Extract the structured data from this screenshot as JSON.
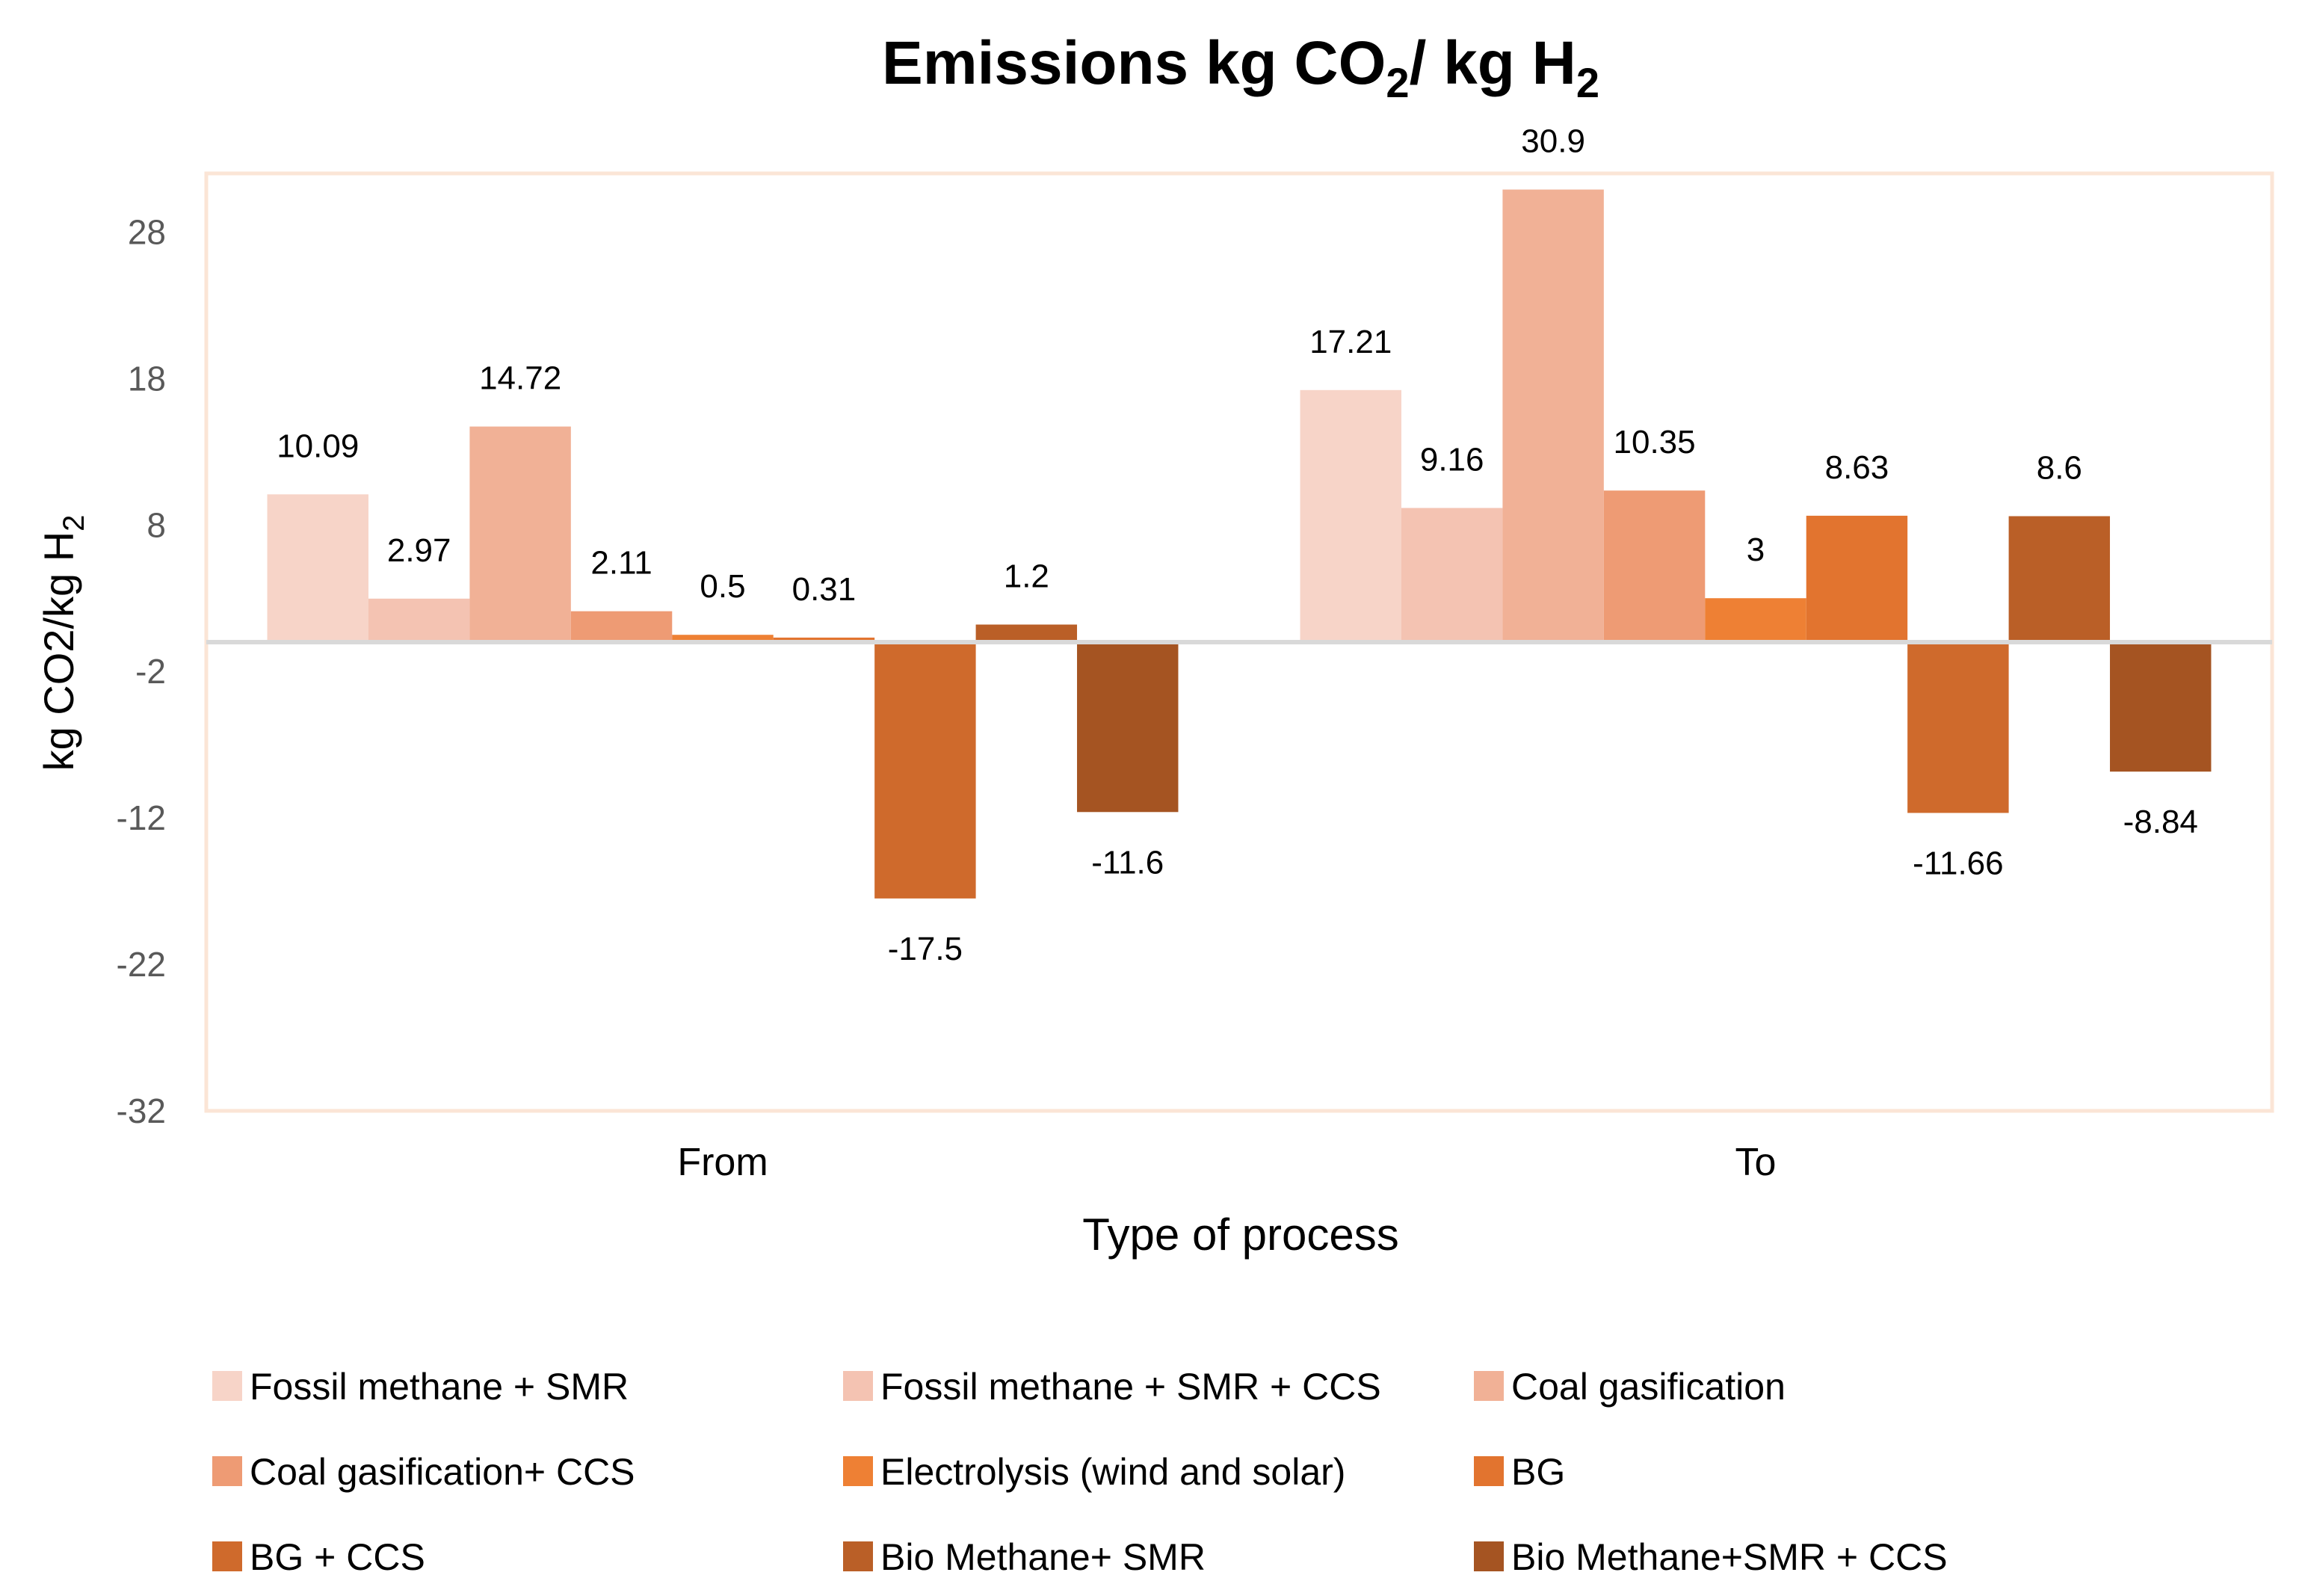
{
  "chart_data": {
    "type": "bar",
    "title": {
      "main": "Emissions kg CO",
      "sub1": "2",
      "mid": "/ kg H",
      "sub2": "2"
    },
    "xlabel": "Type of process",
    "ylabel": {
      "main": "kg CO2/kg H",
      "sub": "2"
    },
    "ylim": [
      -32,
      32
    ],
    "yticks": [
      28,
      18,
      8,
      -2,
      -12,
      -22,
      -32
    ],
    "categories": [
      "From",
      "To"
    ],
    "legend_position": "bottom",
    "gridlines": false,
    "series": [
      {
        "name": "Fossil methane + SMR",
        "color": "#F7D4C8",
        "values": [
          10.09,
          17.21
        ],
        "labels": [
          "10.09",
          "17.21"
        ]
      },
      {
        "name": "Fossil methane + SMR + CCS",
        "color": "#F4C3B2",
        "values": [
          2.97,
          9.16
        ],
        "labels": [
          "2.97",
          "9.16"
        ]
      },
      {
        "name": "Coal gasification",
        "color": "#F1B196",
        "values": [
          14.72,
          30.9
        ],
        "labels": [
          "14.72",
          "30.9"
        ]
      },
      {
        "name": "Coal gasification+ CCS",
        "color": "#EE9B74",
        "values": [
          2.11,
          10.35
        ],
        "labels": [
          "2.11",
          "10.35"
        ]
      },
      {
        "name": "Electrolysis (wind and solar)",
        "color": "#EE8034",
        "values": [
          0.5,
          3
        ],
        "labels": [
          "0.5",
          "3"
        ]
      },
      {
        "name": "BG",
        "color": "#E2742F",
        "values": [
          0.31,
          8.63
        ],
        "labels": [
          "0.31",
          "8.63"
        ]
      },
      {
        "name": "BG + CCS",
        "color": "#CF6A2C",
        "values": [
          -17.5,
          -11.66
        ],
        "labels": [
          "-17.5",
          "-11.66"
        ]
      },
      {
        "name": "Bio Methane+ SMR",
        "color": "#BA5F27",
        "values": [
          1.2,
          8.6
        ],
        "labels": [
          "1.2",
          "8.6"
        ]
      },
      {
        "name": "Bio Methane+SMR + CCS",
        "color": "#A55422",
        "values": [
          -11.6,
          -8.84
        ],
        "labels": [
          "-11.6",
          "-8.84"
        ]
      }
    ]
  }
}
